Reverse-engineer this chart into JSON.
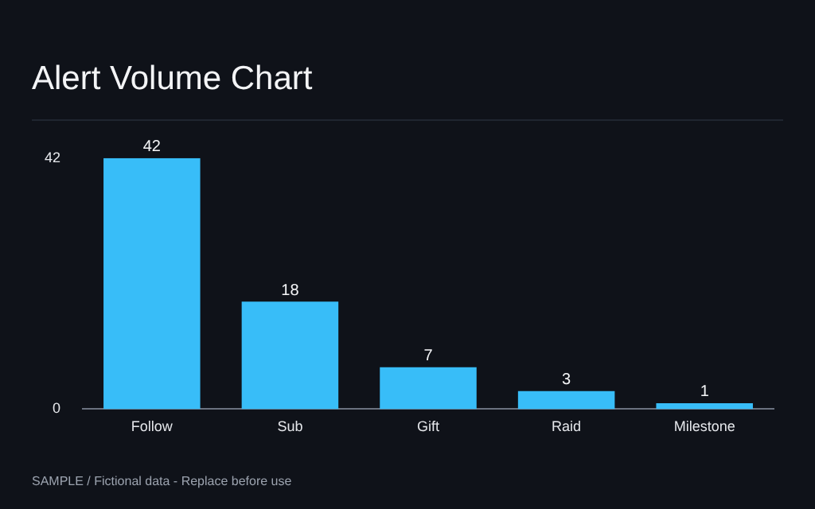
{
  "chart_data": {
    "type": "bar",
    "title": "Alert Volume Chart",
    "categories": [
      "Follow",
      "Sub",
      "Gift",
      "Raid",
      "Milestone"
    ],
    "values": [
      42,
      18,
      7,
      3,
      1
    ],
    "color": "#38bdf8",
    "ylim": [
      0,
      42
    ],
    "yticks": [
      0,
      42
    ],
    "grid": false,
    "legend": false,
    "data_labels": true,
    "annotations": [
      "SAMPLE / Fictional data - Replace before use"
    ]
  }
}
